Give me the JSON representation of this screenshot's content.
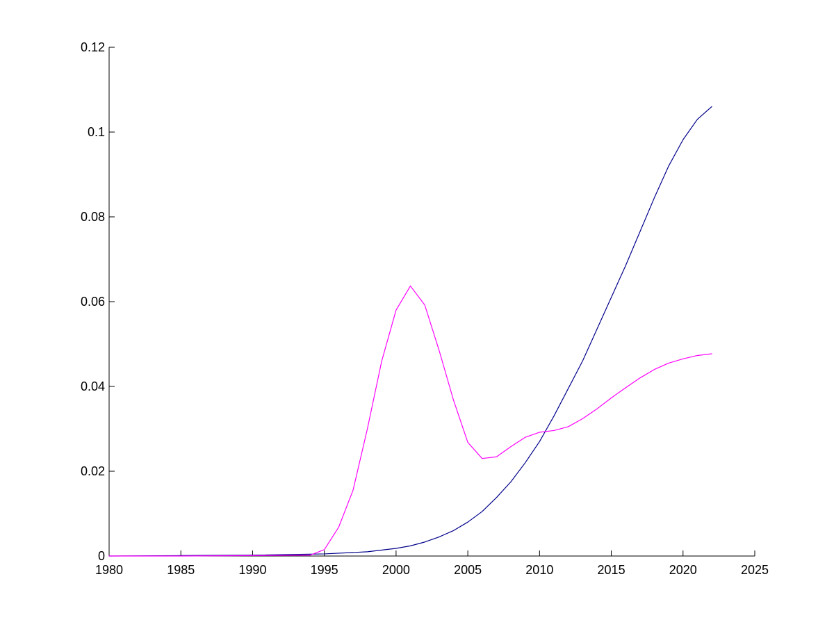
{
  "chart_data": {
    "type": "line",
    "title": "",
    "xlabel": "",
    "ylabel": "",
    "xlim": [
      1980,
      2025
    ],
    "ylim": [
      0,
      0.12
    ],
    "xticks": [
      1980,
      1985,
      1990,
      1995,
      2000,
      2005,
      2010,
      2015,
      2020,
      2025
    ],
    "xtick_labels": [
      "1980",
      "1985",
      "1990",
      "1995",
      "2000",
      "2005",
      "2010",
      "2015",
      "2020",
      "2025"
    ],
    "yticks": [
      0,
      0.02,
      0.04,
      0.06,
      0.08,
      0.1,
      0.12
    ],
    "ytick_labels": [
      "0",
      "0.02",
      "0.04",
      "0.06",
      "0.08",
      "0.1",
      "0.12"
    ],
    "grid": false,
    "legend": "none",
    "series": [
      {
        "color": "#00008b",
        "x": [
          1980,
          1985,
          1990,
          1995,
          1998,
          2000,
          2001,
          2002,
          2003,
          2004,
          2005,
          2006,
          2007,
          2008,
          2009,
          2010,
          2011,
          2012,
          2013,
          2014,
          2015,
          2016,
          2017,
          2018,
          2019,
          2020,
          2021,
          2022
        ],
        "y": [
          0.0,
          0.0001,
          0.0002,
          0.0005,
          0.001,
          0.0018,
          0.0024,
          0.0033,
          0.0045,
          0.006,
          0.008,
          0.0105,
          0.0138,
          0.0175,
          0.022,
          0.027,
          0.033,
          0.0395,
          0.046,
          0.0535,
          0.061,
          0.0685,
          0.0765,
          0.0845,
          0.092,
          0.0982,
          0.103,
          0.106
        ]
      },
      {
        "color": "#ff00ff",
        "x": [
          1980,
          1985,
          1990,
          1994,
          1995,
          1996,
          1997,
          1998,
          1999,
          2000,
          2001,
          2002,
          2003,
          2004,
          2005,
          2006,
          2007,
          2008,
          2009,
          2010,
          2011,
          2012,
          2013,
          2014,
          2015,
          2016,
          2017,
          2018,
          2019,
          2020,
          2021,
          2022
        ],
        "y": [
          0.0,
          0.0,
          0.0001,
          0.0002,
          0.0015,
          0.0068,
          0.0155,
          0.03,
          0.046,
          0.058,
          0.0637,
          0.0592,
          0.0485,
          0.0368,
          0.0268,
          0.023,
          0.0234,
          0.0258,
          0.028,
          0.0292,
          0.0296,
          0.0305,
          0.0324,
          0.0347,
          0.0373,
          0.0397,
          0.042,
          0.044,
          0.0455,
          0.0465,
          0.0473,
          0.0477
        ]
      }
    ]
  }
}
